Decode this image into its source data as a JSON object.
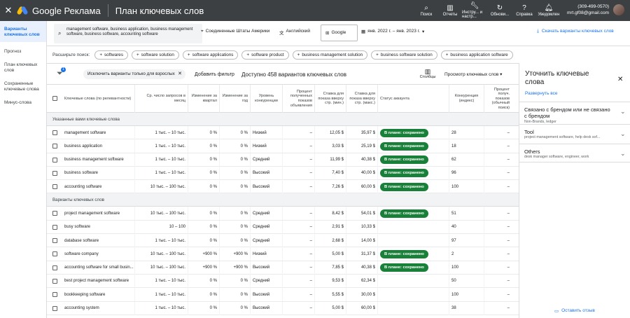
{
  "header": {
    "brand": "Google Реклама",
    "title": "План ключевых слов",
    "tools": [
      {
        "label": "Поиск",
        "icon": "search-icon"
      },
      {
        "label": "Отчеты",
        "icon": "bar-chart-icon"
      },
      {
        "label": "Инстру... и настр...",
        "icon": "wrench-icon"
      },
      {
        "label": "Обнови...",
        "icon": "refresh-icon"
      },
      {
        "label": "Справка",
        "icon": "help-icon"
      },
      {
        "label": "Уведомлен",
        "icon": "bell-icon"
      }
    ],
    "account_phone": "(309-499-0570)",
    "account_email": "mrt.gf08@gmail.com"
  },
  "sidebar": {
    "items": [
      {
        "label": "Варианты ключевых слов",
        "active": true
      },
      {
        "label": "Прогноз",
        "active": false
      },
      {
        "label": "План ключевых слов",
        "active": false
      },
      {
        "label": "Сохраненные ключевые слова",
        "active": false
      },
      {
        "label": "Минус-слова",
        "active": false
      }
    ]
  },
  "search": {
    "query": "management software, business application, business management software, business software, accounting software",
    "location": "Соединенные Штаты Америки",
    "language": "Английский",
    "network": "Google",
    "date_range": "янв. 2022 г. – янв. 2023 г.",
    "download_label": "Скачать варианты ключевых слов"
  },
  "expand": {
    "label": "Расширьте поиск:",
    "chips": [
      "softwares",
      "software solution",
      "software applications",
      "software product",
      "business management solution",
      "business software solution",
      "business application software"
    ]
  },
  "filters": {
    "badge": "1",
    "active_filter": "Исключить варианты только для взрослых",
    "add_filter": "Добавить фильтр",
    "available": "Доступно 458 вариантов ключевых слов",
    "columns_label": "Столбцы",
    "view_label": "Просмотр ключевых слов"
  },
  "table": {
    "headers": [
      "Ключевые слова (по релевантности)",
      "Ср. число запросов в месяц",
      "Изменение за квартал",
      "Изменение за год",
      "Уровень конкуренции",
      "Процент полученных показов объявления",
      "Ставка для показа вверху стр. (мин.)",
      "Ставка для показа вверху стр. (макс.)",
      "Статус аккаунта",
      "Конкуренция (индекс)",
      "Процент получ. показов (обычный поиск)"
    ],
    "sections": [
      {
        "title": "Указанные вами ключевые слова",
        "rows": [
          {
            "kw": "management software",
            "vol": "1 тыс. – 10 тыс.",
            "q": "0 %",
            "y": "0 %",
            "comp": "Низкий",
            "share": "–",
            "low": "12,05 $",
            "high": "35,97 $",
            "status": "В плане: сохранено",
            "idx": "28",
            "org": "–"
          },
          {
            "kw": "business application",
            "vol": "1 тыс. – 10 тыс.",
            "q": "0 %",
            "y": "0 %",
            "comp": "Низкий",
            "share": "–",
            "low": "3,03 $",
            "high": "25,19 $",
            "status": "В плане: сохранено",
            "idx": "18",
            "org": "–"
          },
          {
            "kw": "business management software",
            "vol": "1 тыс. – 10 тыс.",
            "q": "0 %",
            "y": "0 %",
            "comp": "Средний",
            "share": "–",
            "low": "11,99 $",
            "high": "40,38 $",
            "status": "В плане: сохранено",
            "idx": "62",
            "org": "–"
          },
          {
            "kw": "business software",
            "vol": "1 тыс. – 10 тыс.",
            "q": "0 %",
            "y": "0 %",
            "comp": "Высокий",
            "share": "–",
            "low": "7,40 $",
            "high": "40,00 $",
            "status": "В плане: сохранено",
            "idx": "96",
            "org": "–"
          },
          {
            "kw": "accounting software",
            "vol": "10 тыс. – 100 тыс.",
            "q": "0 %",
            "y": "0 %",
            "comp": "Высокий",
            "share": "–",
            "low": "7,26 $",
            "high": "60,00 $",
            "status": "В плане: сохранено",
            "idx": "100",
            "org": "–"
          }
        ]
      },
      {
        "title": "Варианты ключевых слов",
        "rows": [
          {
            "kw": "project management software",
            "vol": "10 тыс. – 100 тыс.",
            "q": "0 %",
            "y": "0 %",
            "comp": "Средний",
            "share": "–",
            "low": "8,42 $",
            "high": "54,01 $",
            "status": "В плане: сохранено",
            "idx": "51",
            "org": "–"
          },
          {
            "kw": "busy software",
            "vol": "10 – 100",
            "q": "0 %",
            "y": "0 %",
            "comp": "Средний",
            "share": "–",
            "low": "2,91 $",
            "high": "10,33 $",
            "status": "",
            "idx": "40",
            "org": "–"
          },
          {
            "kw": "database software",
            "vol": "1 тыс. – 10 тыс.",
            "q": "0 %",
            "y": "0 %",
            "comp": "Средний",
            "share": "–",
            "low": "2,68 $",
            "high": "14,00 $",
            "status": "",
            "idx": "97",
            "org": "–"
          },
          {
            "kw": "software company",
            "vol": "10 тыс. – 100 тыс.",
            "q": "+900 %",
            "y": "+900 %",
            "comp": "Низкий",
            "share": "–",
            "low": "5,00 $",
            "high": "31,37 $",
            "status": "В плане: сохранено",
            "idx": "2",
            "org": "–"
          },
          {
            "kw": "accounting software for small busin...",
            "vol": "10 тыс. – 100 тыс.",
            "q": "+900 %",
            "y": "+900 %",
            "comp": "Высокий",
            "share": "–",
            "low": "7,85 $",
            "high": "40,38 $",
            "status": "В плане: сохранено",
            "idx": "100",
            "org": "–"
          },
          {
            "kw": "best project management software",
            "vol": "1 тыс. – 10 тыс.",
            "q": "0 %",
            "y": "0 %",
            "comp": "Средний",
            "share": "–",
            "low": "9,53 $",
            "high": "62,34 $",
            "status": "",
            "idx": "50",
            "org": "–"
          },
          {
            "kw": "bookkeeping software",
            "vol": "1 тыс. – 10 тыс.",
            "q": "0 %",
            "y": "0 %",
            "comp": "Высокий",
            "share": "–",
            "low": "5,55 $",
            "high": "30,00 $",
            "status": "",
            "idx": "100",
            "org": "–"
          },
          {
            "kw": "accounting system",
            "vol": "1 тыс. – 10 тыс.",
            "q": "0 %",
            "y": "0 %",
            "comp": "Высокий",
            "share": "–",
            "low": "5,00 $",
            "high": "60,00 $",
            "status": "",
            "idx": "38",
            "org": "–"
          }
        ]
      }
    ]
  },
  "panel": {
    "title": "Уточнить ключевые слова",
    "expand_all": "Развернуть все",
    "groups": [
      {
        "title": "Связано с брендом или не связано с брендом",
        "sub": "Non-Brands, ledger"
      },
      {
        "title": "Tool",
        "sub": "project management software, help desk sof..."
      },
      {
        "title": "Others",
        "sub": "desk manager software, engineer, work"
      }
    ],
    "feedback": "Оставить отзыв"
  },
  "colors": {
    "topbar": "#3c4043",
    "accent": "#1a73e8",
    "status_green": "#188038"
  }
}
